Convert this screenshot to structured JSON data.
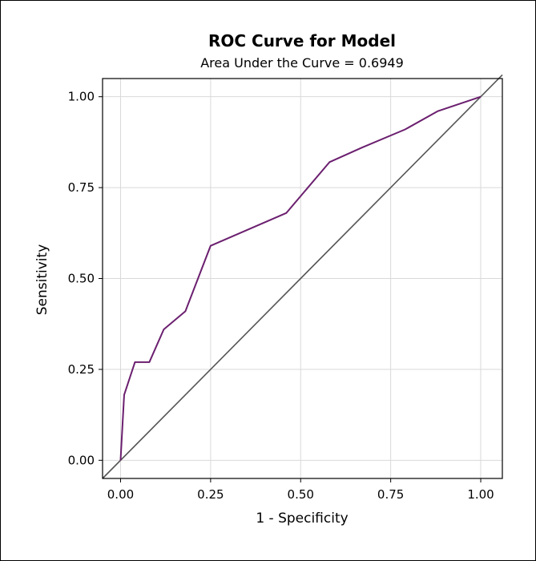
{
  "chart_data": {
    "type": "line",
    "title": "ROC Curve for Model",
    "subtitle": "Area Under the Curve = 0.6949",
    "xlabel": "1 - Specificity",
    "ylabel": "Sensitivity",
    "xlim": [
      -0.05,
      1.06
    ],
    "ylim": [
      -0.05,
      1.05
    ],
    "grid": true,
    "legend": "none",
    "x_ticks": [
      "0.00",
      "0.25",
      "0.50",
      "0.75",
      "1.00"
    ],
    "y_ticks": [
      "0.00",
      "0.25",
      "0.50",
      "0.75",
      "1.00"
    ],
    "series": [
      {
        "color": "#6b1f6f",
        "x": [
          0.0,
          0.01,
          0.04,
          0.08,
          0.12,
          0.18,
          0.25,
          0.46,
          0.58,
          0.67,
          0.79,
          0.88,
          1.0
        ],
        "y": [
          0.0,
          0.18,
          0.27,
          0.27,
          0.36,
          0.41,
          0.59,
          0.68,
          0.82,
          0.86,
          0.91,
          0.96,
          1.0
        ]
      },
      {
        "color": "#555555",
        "x": [
          -0.05,
          1.06
        ],
        "y": [
          -0.05,
          1.06
        ]
      }
    ]
  }
}
